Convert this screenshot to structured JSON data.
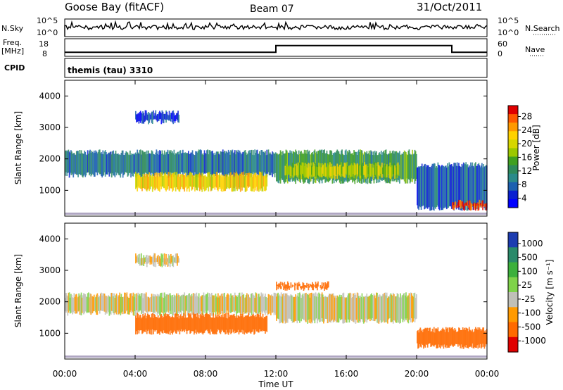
{
  "header": {
    "station": "Goose Bay (fitACF)",
    "beam": "Beam 07",
    "date": "31/Oct/2011"
  },
  "panels": {
    "nsky_label": "N.Sky",
    "nsky_ticks": [
      "10^5",
      "10^0"
    ],
    "nsearch_label": "N.Search",
    "nsearch_ticks": [
      "10^5",
      "10^0"
    ],
    "freq_label_1": "Freq.",
    "freq_label_2": "[MHz]",
    "freq_ticks": [
      "18",
      "8"
    ],
    "nave_label": "Nave",
    "nave_ticks": [
      "60",
      "0"
    ],
    "cpid_label": "CPID",
    "cpid_value": "themis (tau) 3310"
  },
  "xaxis": {
    "title": "Time UT",
    "ticks": [
      "00:00",
      "04:00",
      "08:00",
      "12:00",
      "16:00",
      "20:00",
      "00:00"
    ]
  },
  "power_colorbar": {
    "title": "Power [dB]",
    "ticks": [
      "28",
      "24",
      "20",
      "16",
      "12",
      "8",
      "4"
    ],
    "colors": [
      "#e00000",
      "#ff5a00",
      "#ff9a00",
      "#ffd200",
      "#d6d600",
      "#9cc800",
      "#40a020",
      "#2e8a5a",
      "#2a8a8a",
      "#1c60b0",
      "#0a20d0",
      "#0000ff"
    ]
  },
  "velocity_colorbar": {
    "title": "Velocity [m s⁻¹]",
    "ticks": [
      "1000",
      "500",
      "100",
      "25",
      "-25",
      "-100",
      "-500",
      "-1000"
    ],
    "colors": [
      "#1c3cb0",
      "#2a8a6a",
      "#3cb03c",
      "#7fd24a",
      "#c0c0b8",
      "#ff9a00",
      "#ff6a00",
      "#e00000"
    ]
  },
  "chart_data": [
    {
      "type": "heatmap",
      "title": "Goose Bay (fitACF) Beam 07 31/Oct/2011",
      "xlabel": "Time UT",
      "ylabel": "Slant Range [km]",
      "xlim": [
        0,
        24
      ],
      "ylim": [
        180,
        4500
      ],
      "yticks": [
        1000,
        2000,
        3000,
        4000
      ],
      "colorbar": "Power [dB]",
      "colorbar_range": [
        3,
        30
      ],
      "bands": [
        {
          "t": [
            0.0,
            12.0
          ],
          "range": [
            1400,
            2300
          ],
          "value": 10
        },
        {
          "t": [
            12.0,
            20.0
          ],
          "range": [
            1200,
            2300
          ],
          "value": 13
        },
        {
          "t": [
            4.0,
            11.5
          ],
          "range": [
            950,
            1600
          ],
          "value": 22
        },
        {
          "t": [
            12.5,
            19.0
          ],
          "range": [
            1350,
            1900
          ],
          "value": 19
        },
        {
          "t": [
            20.0,
            24.0
          ],
          "range": [
            350,
            1900
          ],
          "value": 8
        },
        {
          "t": [
            22.0,
            24.0
          ],
          "range": [
            350,
            700
          ],
          "value": 28
        },
        {
          "t": [
            4.0,
            6.5
          ],
          "range": [
            3100,
            3550
          ],
          "value": 6
        }
      ]
    },
    {
      "type": "heatmap",
      "xlabel": "Time UT",
      "ylabel": "Slant Range [km]",
      "xlim": [
        0,
        24
      ],
      "ylim": [
        180,
        4500
      ],
      "yticks": [
        1000,
        2000,
        3000,
        4000
      ],
      "colorbar": "Velocity [m s⁻¹]",
      "colorbar_ticks": [
        1000,
        500,
        100,
        25,
        -25,
        -100,
        -500,
        -1000
      ],
      "bands": [
        {
          "t": [
            0.0,
            12.0
          ],
          "range": [
            1550,
            2300
          ],
          "value": 0
        },
        {
          "t": [
            12.0,
            20.0
          ],
          "range": [
            1300,
            2300
          ],
          "value": 0
        },
        {
          "t": [
            4.0,
            11.5
          ],
          "range": [
            950,
            1650
          ],
          "value": -200
        },
        {
          "t": [
            12.0,
            15.0
          ],
          "range": [
            2350,
            2650
          ],
          "value": -400
        },
        {
          "t": [
            20.0,
            24.0
          ],
          "range": [
            500,
            1200
          ],
          "value": -300
        },
        {
          "t": [
            4.0,
            6.5
          ],
          "range": [
            3100,
            3550
          ],
          "value": 0
        }
      ]
    }
  ],
  "freq_data": {
    "before": {
      "t": [
        0.0,
        12.0
      ],
      "freq": 10
    },
    "middle": {
      "t": [
        12.0,
        22.0
      ],
      "freq": 15
    },
    "after": {
      "t": [
        22.0,
        24.0
      ],
      "freq": 10
    }
  }
}
